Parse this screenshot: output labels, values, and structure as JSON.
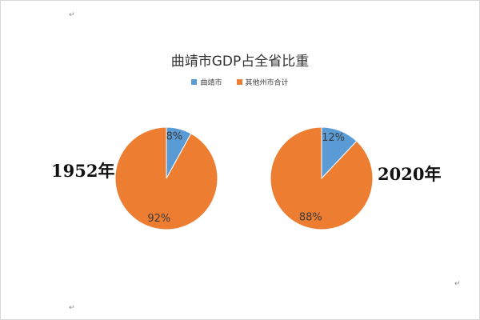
{
  "chart_data": {
    "type": "pie",
    "title": "曲靖市GDP占全省比重",
    "legend": {
      "placement": "top",
      "entries": [
        "曲靖市",
        "其他州市合计"
      ]
    },
    "colors": {
      "qujing": "#5b9bd5",
      "others": "#ed7d31"
    },
    "pies": [
      {
        "label": "1952年",
        "slices": [
          {
            "name": "曲靖市",
            "value": 8,
            "display": "8%"
          },
          {
            "name": "其他州市合计",
            "value": 92,
            "display": "92%"
          }
        ]
      },
      {
        "label": "2020年",
        "slices": [
          {
            "name": "曲靖市",
            "value": 12,
            "display": "12%"
          },
          {
            "name": "其他州市合计",
            "value": 88,
            "display": "88%"
          }
        ]
      }
    ]
  },
  "document": {
    "paragraph_mark": "↵"
  }
}
